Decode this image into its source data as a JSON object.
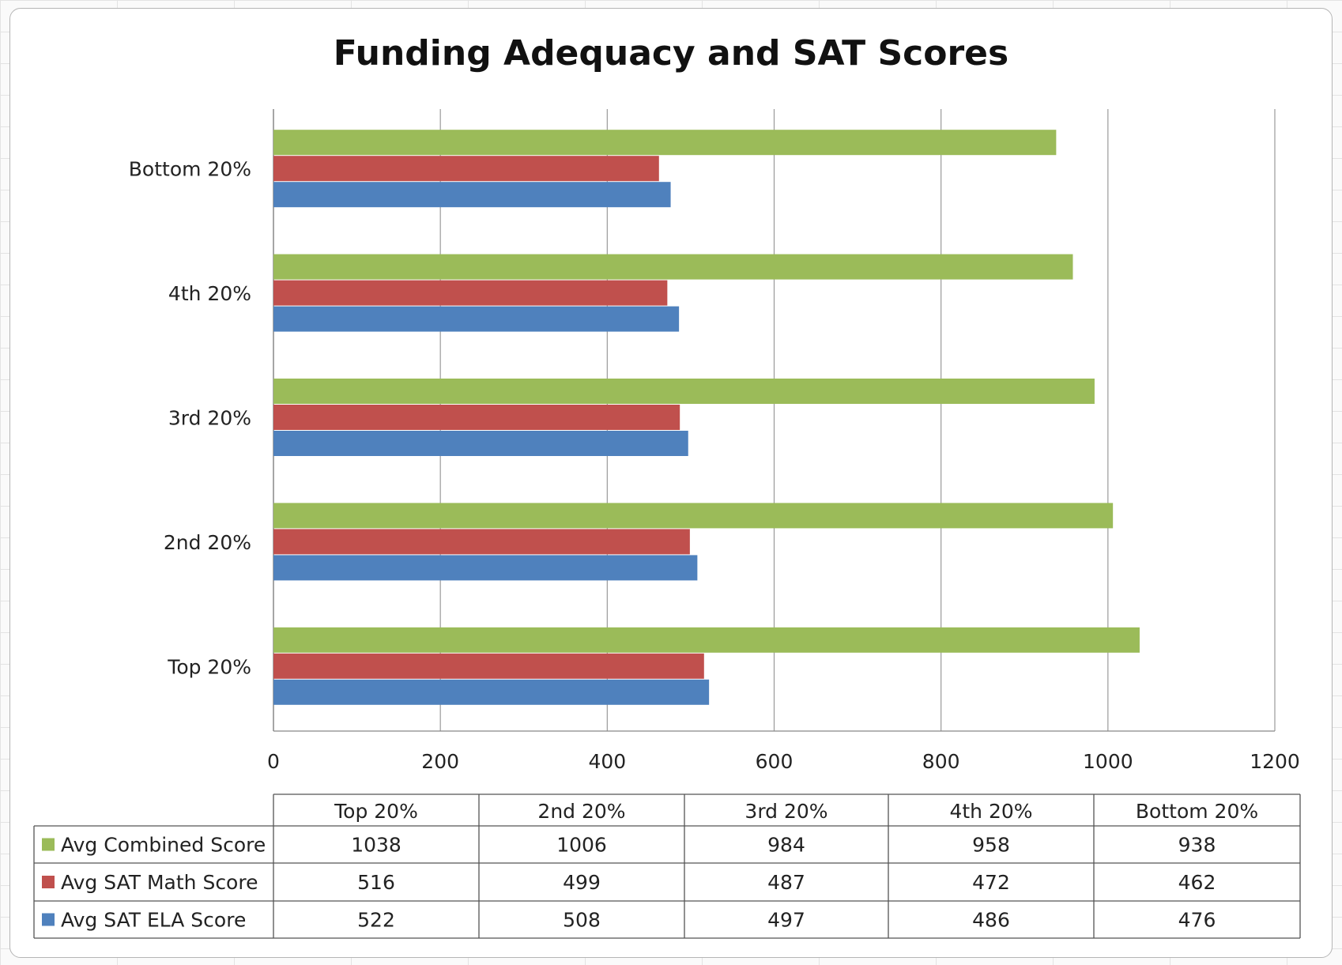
{
  "chart_data": {
    "type": "bar",
    "orientation": "horizontal",
    "title": "Funding Adequacy and SAT Scores",
    "xlabel": "",
    "ylabel": "",
    "xlim": [
      0,
      1200
    ],
    "x_ticks": [
      "0",
      "200",
      "400",
      "600",
      "800",
      "1000",
      "1200"
    ],
    "grid": true,
    "categories": [
      "Top 20%",
      "2nd 20%",
      "3rd 20%",
      "4th 20%",
      "Bottom 20%"
    ],
    "series": [
      {
        "name": "Avg Combined Score",
        "color": "#9BBB59",
        "values": [
          1038,
          1006,
          984,
          958,
          938
        ]
      },
      {
        "name": "Avg SAT Math Score",
        "color": "#C0504D",
        "values": [
          516,
          499,
          487,
          472,
          462
        ]
      },
      {
        "name": "Avg SAT ELA Score",
        "color": "#4F81BD",
        "values": [
          522,
          508,
          497,
          486,
          476
        ]
      }
    ],
    "legend": "data-table-below",
    "data_table": true
  }
}
